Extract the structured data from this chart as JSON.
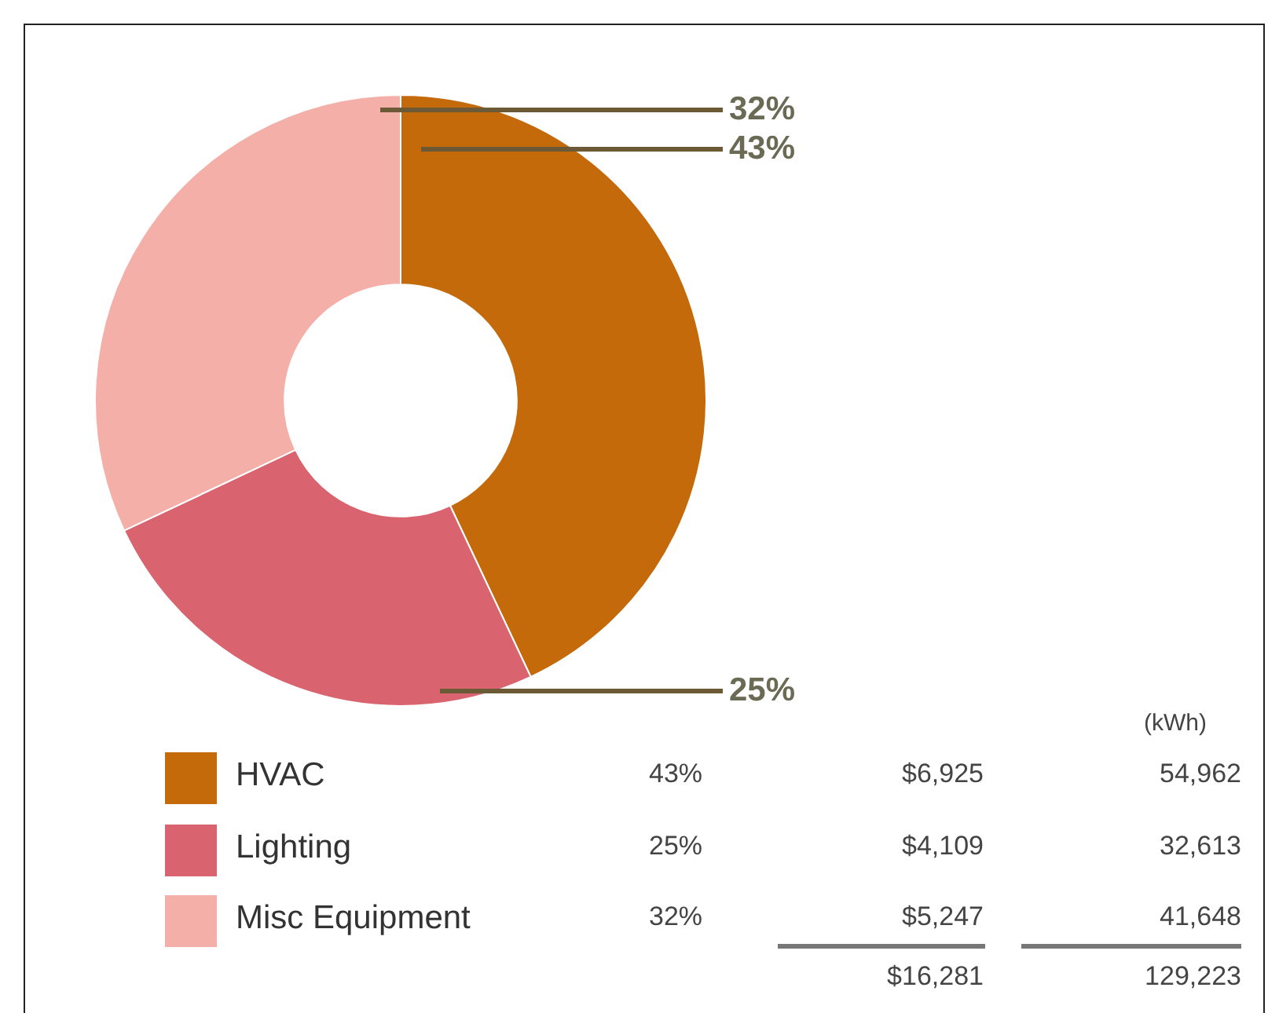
{
  "chart_data": {
    "type": "donut",
    "categories": [
      "HVAC",
      "Lighting",
      "Misc Equipment"
    ],
    "values": [
      43,
      25,
      32
    ],
    "colors": [
      "#c46a0a",
      "#d9636e",
      "#f4b0a8"
    ],
    "value_labels": [
      "43%",
      "25%",
      "32%"
    ],
    "legend": "bottom",
    "annotations": [
      "(kWh)",
      "$6,925",
      "54,962",
      "$4,109",
      "32,613",
      "$5,247",
      "41,648",
      "$16,281",
      "129,223"
    ]
  }
}
